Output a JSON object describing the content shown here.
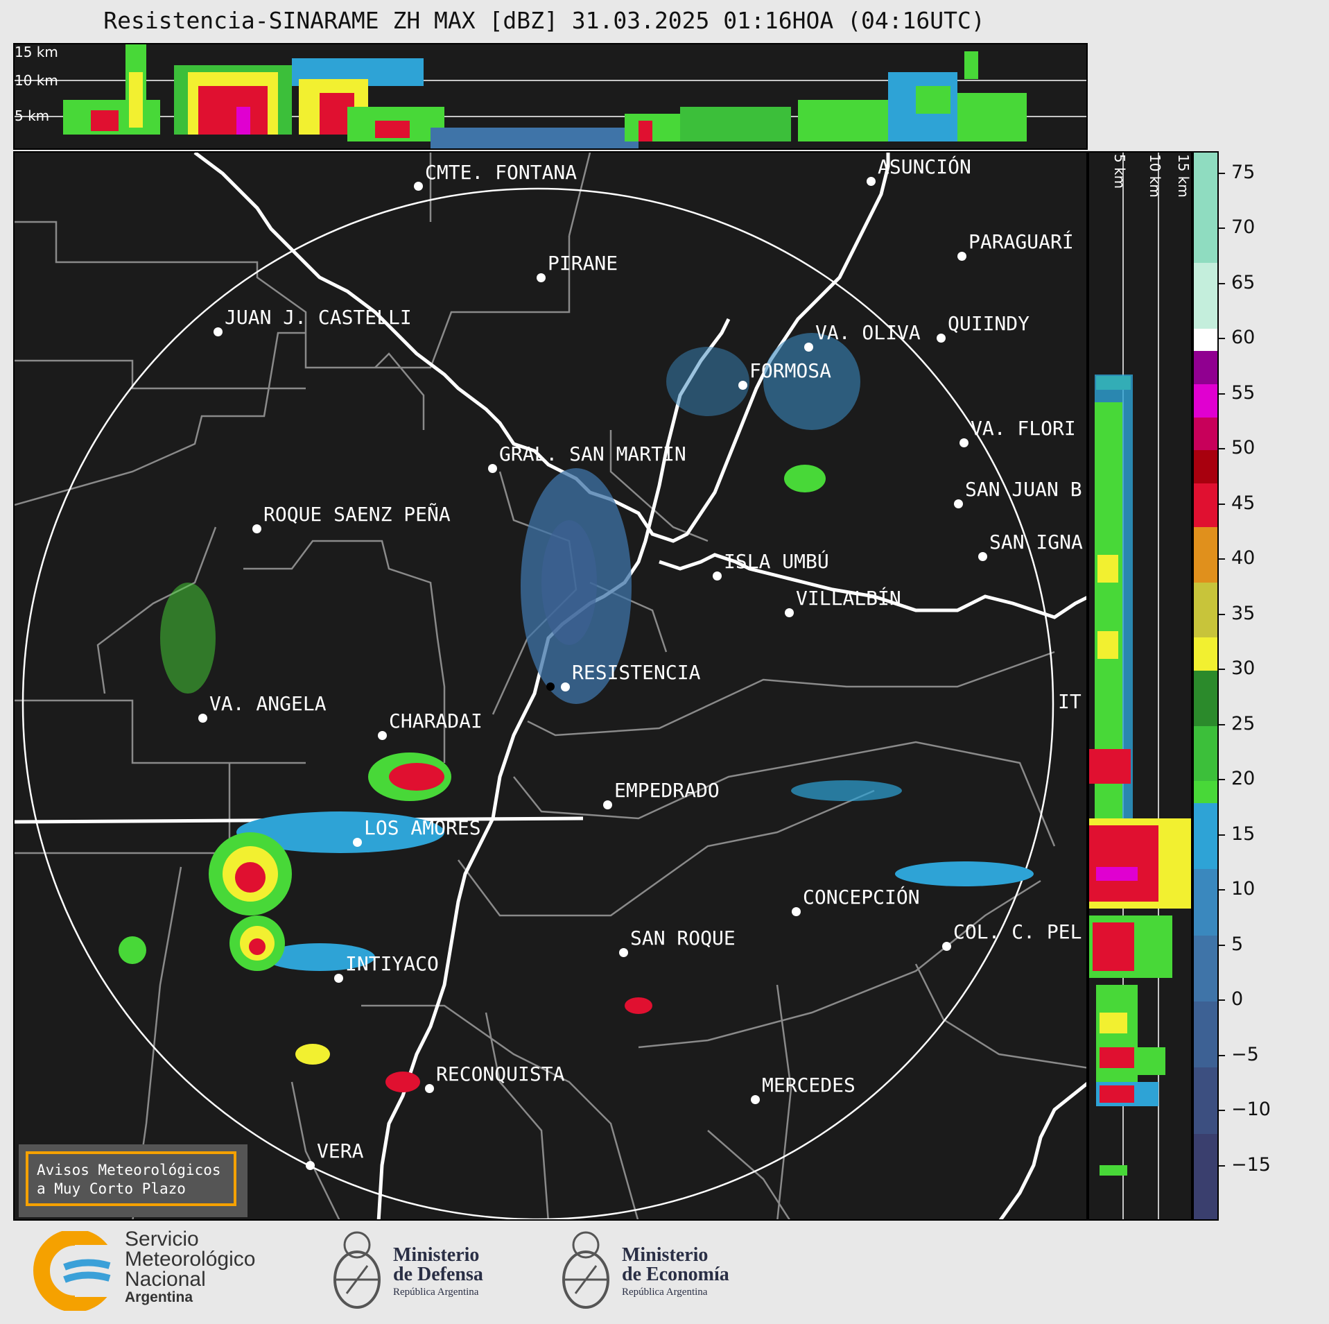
{
  "title": "Resistencia-SINARAME ZH MAX [dBZ] 31.03.2025 01:16HOA (04:16UTC)",
  "top_strip": {
    "altitude_labels": [
      "15 km",
      "10 km",
      "5 km"
    ]
  },
  "side_strip": {
    "altitude_labels": [
      "5 km",
      "10 km",
      "15 km"
    ]
  },
  "cities": [
    {
      "name": "CMTE. FONTANA"
    },
    {
      "name": "ASUNCIÓN"
    },
    {
      "name": "PIRANE"
    },
    {
      "name": "PARAGUARÍ"
    },
    {
      "name": "JUAN J. CASTELLI"
    },
    {
      "name": "VA. OLIVA"
    },
    {
      "name": "QUIINDY"
    },
    {
      "name": "FORMOSA"
    },
    {
      "name": "VA. FLORI"
    },
    {
      "name": "GRAL. SAN MARTIN"
    },
    {
      "name": "SAN JUAN B"
    },
    {
      "name": "ROQUE SAENZ PEÑA"
    },
    {
      "name": "SAN IGNA"
    },
    {
      "name": "ISLA UMBÚ"
    },
    {
      "name": "VILLALBÍN"
    },
    {
      "name": "RESISTENCIA"
    },
    {
      "name": "VA. ANGELA"
    },
    {
      "name": "CHARADAI"
    },
    {
      "name": "IT"
    },
    {
      "name": "EMPEDRADO"
    },
    {
      "name": "LOS AMORES"
    },
    {
      "name": "CONCEPCIÓN"
    },
    {
      "name": "SAN ROQUE"
    },
    {
      "name": "COL. C. PEL"
    },
    {
      "name": "INTIYACO"
    },
    {
      "name": "RECONQUISTA"
    },
    {
      "name": "MERCEDES"
    },
    {
      "name": "VERA"
    }
  ],
  "colorbar": {
    "unit": "dBZ",
    "min": -20,
    "max": 77,
    "tick_labels": [
      "75",
      "70",
      "65",
      "60",
      "55",
      "50",
      "45",
      "40",
      "35",
      "30",
      "25",
      "20",
      "15",
      "10",
      "5",
      "0",
      "−5",
      "−10",
      "−15"
    ],
    "tick_values": [
      75,
      70,
      65,
      60,
      55,
      50,
      45,
      40,
      35,
      30,
      25,
      20,
      15,
      10,
      5,
      0,
      -5,
      -10,
      -15
    ],
    "segments": [
      {
        "from": -20,
        "to": -12,
        "color": "#3a3f6e"
      },
      {
        "from": -12,
        "to": -6,
        "color": "#3c4f80"
      },
      {
        "from": -6,
        "to": 0,
        "color": "#3d6194"
      },
      {
        "from": 0,
        "to": 6,
        "color": "#3f74a8"
      },
      {
        "from": 6,
        "to": 12,
        "color": "#3a88be"
      },
      {
        "from": 12,
        "to": 18,
        "color": "#2ea3d6"
      },
      {
        "from": 18,
        "to": 20,
        "color": "#48d838"
      },
      {
        "from": 20,
        "to": 25,
        "color": "#3cbf3a"
      },
      {
        "from": 25,
        "to": 30,
        "color": "#2b8a2b"
      },
      {
        "from": 30,
        "to": 33,
        "color": "#f2f030"
      },
      {
        "from": 33,
        "to": 38,
        "color": "#c8c43a"
      },
      {
        "from": 38,
        "to": 43,
        "color": "#e0901c"
      },
      {
        "from": 43,
        "to": 47,
        "color": "#e01030"
      },
      {
        "from": 47,
        "to": 50,
        "color": "#a8000e"
      },
      {
        "from": 50,
        "to": 53,
        "color": "#c8005a"
      },
      {
        "from": 53,
        "to": 56,
        "color": "#e000d0"
      },
      {
        "from": 56,
        "to": 59,
        "color": "#900090"
      },
      {
        "from": 59,
        "to": 61,
        "color": "#ffffff"
      },
      {
        "from": 61,
        "to": 67,
        "color": "#c4eedc"
      },
      {
        "from": 67,
        "to": 77,
        "color": "#8fdcc0"
      }
    ]
  },
  "warning_box": {
    "line1": "Avisos Meteorológicos",
    "line2": "a Muy Corto Plazo",
    "border_color": "#f5a100"
  },
  "logos": {
    "smn_line1": "Servicio",
    "smn_line2": "Meteorológico",
    "smn_line3": "Nacional",
    "smn_line4": "Argentina",
    "defensa_line1": "Ministerio",
    "defensa_line2": "de Defensa",
    "defensa_line3": "República Argentina",
    "economia_line1": "Ministerio",
    "economia_line2": "de Economía",
    "economia_line3": "República Argentina"
  }
}
